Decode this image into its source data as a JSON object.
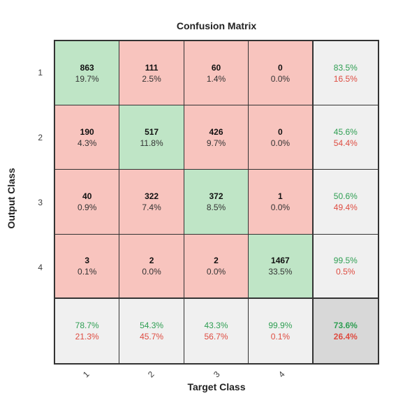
{
  "title": "Confusion Matrix",
  "axes": {
    "xlabel": "Target Class",
    "ylabel": "Output Class"
  },
  "classes": [
    "1",
    "2",
    "3",
    "4"
  ],
  "colors": {
    "diagonal_cell": "#BFE5C6",
    "off_diagonal_cell": "#F8C4BE",
    "summary_cell": "#F0F0F0",
    "total_cell": "#D8D8D8",
    "correct_text": "#2E9E52",
    "incorrect_text": "#DE4C41",
    "count_text": "#111111",
    "grid_line": "#333333"
  },
  "chart_data": {
    "type": "heatmap",
    "title": "Confusion Matrix",
    "xlabel": "Target Class",
    "ylabel": "Output Class",
    "categories": [
      "1",
      "2",
      "3",
      "4"
    ],
    "counts": [
      [
        863,
        111,
        60,
        0
      ],
      [
        190,
        517,
        426,
        0
      ],
      [
        40,
        322,
        372,
        1
      ],
      [
        3,
        2,
        2,
        1467
      ]
    ],
    "cell_percents": [
      [
        "19.7%",
        "2.5%",
        "1.4%",
        "0.0%"
      ],
      [
        "4.3%",
        "11.8%",
        "9.7%",
        "0.0%"
      ],
      [
        "0.9%",
        "7.4%",
        "8.5%",
        "0.0%"
      ],
      [
        "0.1%",
        "0.0%",
        "0.0%",
        "33.5%"
      ]
    ],
    "row_summary": [
      {
        "correct": "83.5%",
        "incorrect": "16.5%"
      },
      {
        "correct": "45.6%",
        "incorrect": "54.4%"
      },
      {
        "correct": "50.6%",
        "incorrect": "49.4%"
      },
      {
        "correct": "99.5%",
        "incorrect": "0.5%"
      }
    ],
    "col_summary": [
      {
        "correct": "78.7%",
        "incorrect": "21.3%"
      },
      {
        "correct": "54.3%",
        "incorrect": "45.7%"
      },
      {
        "correct": "43.3%",
        "incorrect": "56.7%"
      },
      {
        "correct": "99.9%",
        "incorrect": "0.1%"
      }
    ],
    "total": {
      "correct": "73.6%",
      "incorrect": "26.4%"
    },
    "legend_position": "none",
    "grid": true
  }
}
